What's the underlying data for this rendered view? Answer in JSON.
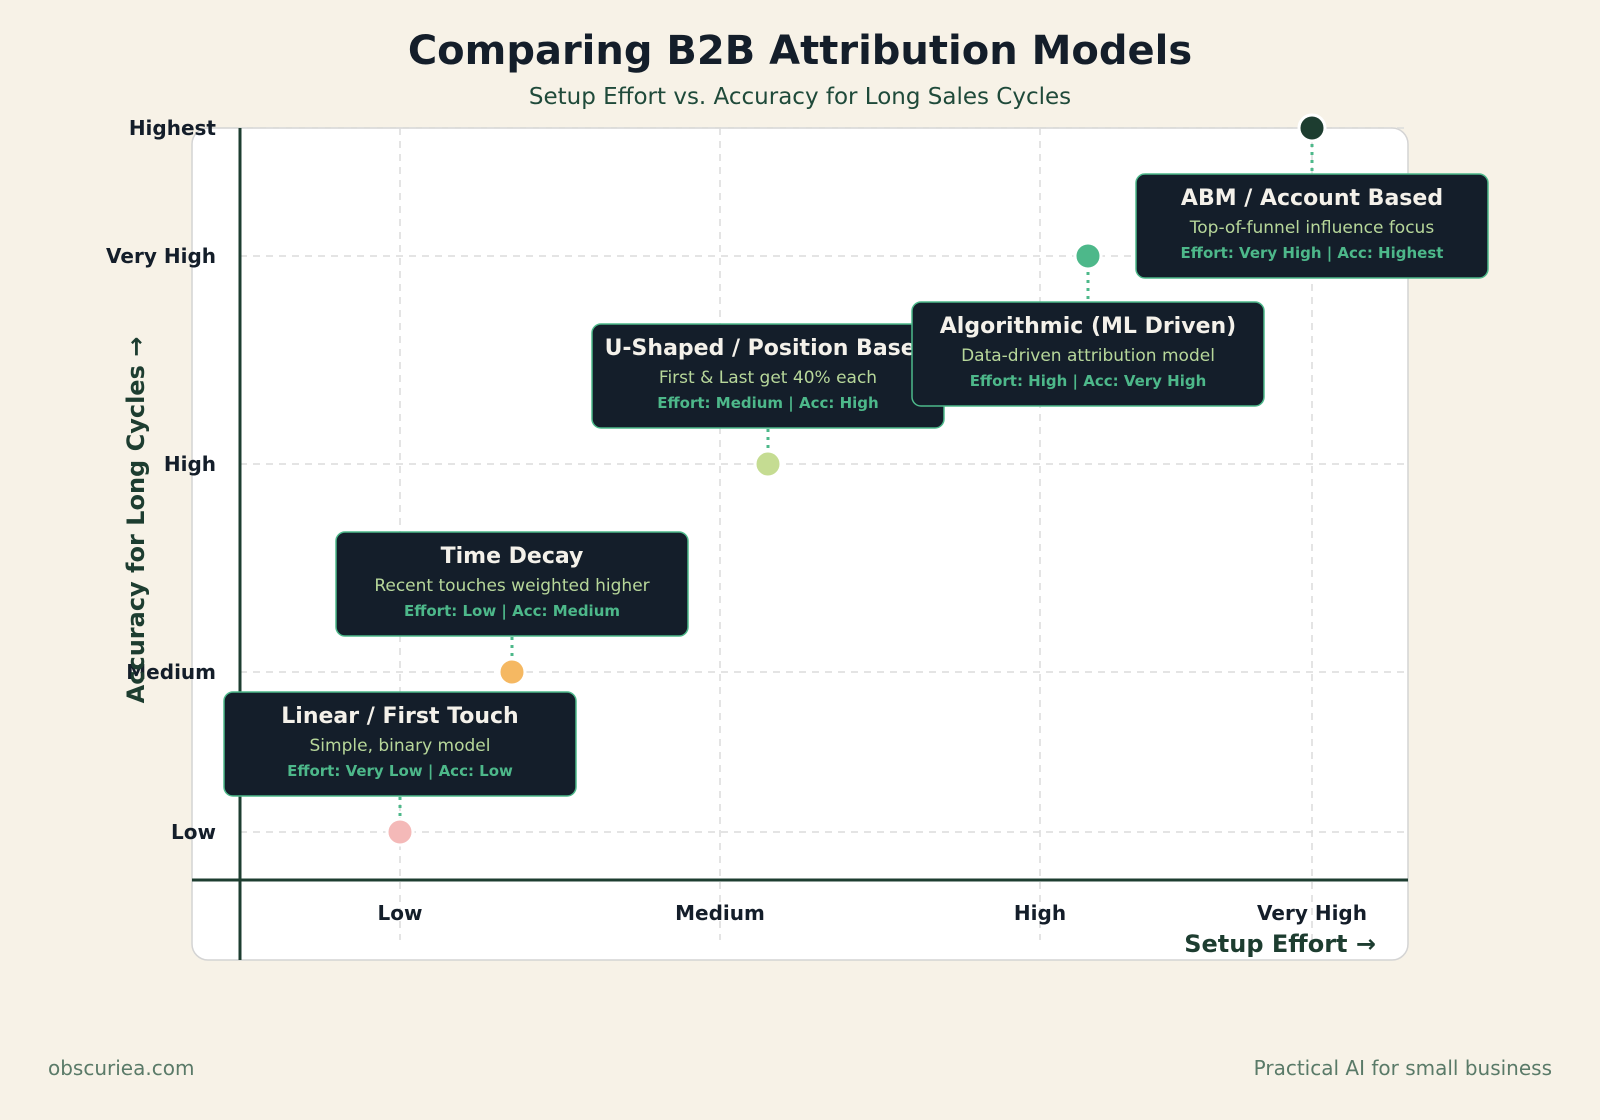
{
  "chart_data": {
    "type": "scatter",
    "title": "Comparing B2B Attribution Models",
    "subtitle": "Setup Effort vs. Accuracy for Long Sales Cycles",
    "xlabel": "Setup Effort →",
    "ylabel": "Accuracy for Long Cycles →",
    "x_ticks": [
      {
        "label": "Low",
        "value": 1
      },
      {
        "label": "Medium",
        "value": 2
      },
      {
        "label": "High",
        "value": 3
      },
      {
        "label": "Very High",
        "value": 3.85
      }
    ],
    "y_ticks": [
      {
        "label": "Low",
        "value": 1
      },
      {
        "label": "Medium",
        "value": 2
      },
      {
        "label": "High",
        "value": 3.3
      },
      {
        "label": "Very High",
        "value": 4.6
      },
      {
        "label": "Highest",
        "value": 5.4
      }
    ],
    "xlim": [
      0.5,
      4.15
    ],
    "ylim": [
      0.7,
      5.4
    ],
    "grid": true,
    "points": [
      {
        "name": "Linear / First Touch",
        "description": "Simple, binary model",
        "stats": "Effort: Very Low | Acc: Low",
        "x": 1.0,
        "y": 1.0,
        "color": "#f4b9b8",
        "label_side": "above"
      },
      {
        "name": "Time Decay",
        "description": "Recent touches weighted higher",
        "stats": "Effort: Low | Acc: Medium",
        "x": 1.35,
        "y": 2.0,
        "color": "#f5b862",
        "label_side": "above"
      },
      {
        "name": "U-Shaped / Position Based",
        "description": "First & Last get 40% each",
        "stats": "Effort: Medium | Acc: High",
        "x": 2.15,
        "y": 3.3,
        "color": "#c5dc92",
        "label_side": "above"
      },
      {
        "name": "Algorithmic (ML Driven)",
        "description": "Data-driven attribution model",
        "stats": "Effort: High | Acc: Very High",
        "x": 3.15,
        "y": 4.6,
        "color": "#4db88a",
        "label_side": "below"
      },
      {
        "name": "ABM / Account Based",
        "description": "Top-of-funnel influence focus",
        "stats": "Effort: Very High | Acc: Highest",
        "x": 3.85,
        "y": 5.4,
        "color": "#1d3d30",
        "label_side": "below"
      }
    ]
  },
  "footer": {
    "left": "obscuriea.com",
    "right": "Practical AI for small business"
  }
}
